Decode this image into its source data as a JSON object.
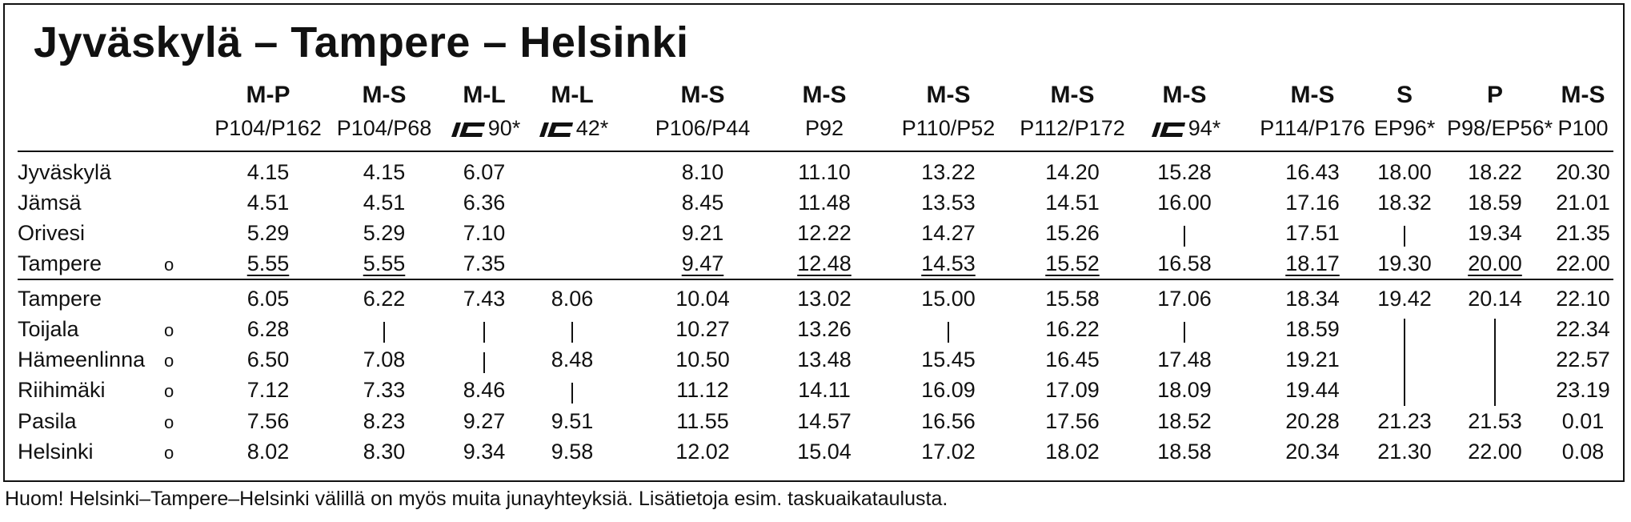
{
  "title": "Jyväskylä – Tampere – Helsinki",
  "columns": [
    {
      "type": "M-P",
      "train": "P104/P162"
    },
    {
      "type": "M-S",
      "train": "P104/P68"
    },
    {
      "type": "M-L",
      "train": "90*",
      "ic": true
    },
    {
      "type": "M-L",
      "train": "42*",
      "ic": true
    },
    {
      "type": "M-S",
      "train": "P106/P44"
    },
    {
      "type": "M-S",
      "train": "P92"
    },
    {
      "type": "M-S",
      "train": "P110/P52"
    },
    {
      "type": "M-S",
      "train": "P112/P172"
    },
    {
      "type": "M-S",
      "train": "94*",
      "ic": true
    },
    {
      "type": "M-S",
      "train": "P114/P176"
    },
    {
      "type": "S",
      "train": "EP96*"
    },
    {
      "type": "P",
      "train": "P98/EP56*"
    },
    {
      "type": "M-S",
      "train": "P100"
    }
  ],
  "sections": [
    {
      "rows": [
        {
          "station": "Jyväskylä",
          "circle": "",
          "times": [
            "4.15",
            "4.15",
            "6.07",
            "",
            "8.10",
            "11.10",
            "13.22",
            "14.20",
            "15.28",
            "16.43",
            "18.00",
            "18.22",
            "20.30"
          ]
        },
        {
          "station": "Jämsä",
          "circle": "",
          "times": [
            "4.51",
            "4.51",
            "6.36",
            "",
            "8.45",
            "11.48",
            "13.53",
            "14.51",
            "16.00",
            "17.16",
            "18.32",
            "18.59",
            "21.01"
          ]
        },
        {
          "station": "Orivesi",
          "circle": "",
          "times": [
            "5.29",
            "5.29",
            "7.10",
            "",
            "9.21",
            "12.22",
            "14.27",
            "15.26",
            "|",
            "17.51",
            "|",
            "19.34",
            "21.35"
          ]
        },
        {
          "station": "Tampere",
          "circle": "o",
          "times": [
            "5.55",
            "5.55",
            "7.35",
            "",
            "9.47",
            "12.48",
            "14.53",
            "15.52",
            "16.58",
            "18.17",
            "19.30",
            "20.00",
            "22.00"
          ],
          "underline": [
            0,
            1,
            4,
            5,
            6,
            7,
            9,
            11
          ]
        }
      ]
    },
    {
      "rows": [
        {
          "station": "Tampere",
          "circle": "",
          "times": [
            "6.05",
            "6.22",
            "7.43",
            "8.06",
            "10.04",
            "13.02",
            "15.00",
            "15.58",
            "17.06",
            "18.34",
            "19.42",
            "20.14",
            "22.10"
          ]
        },
        {
          "station": "Toijala",
          "circle": "o",
          "times": [
            "6.28",
            "|",
            "|",
            "|",
            "10.27",
            "13.26",
            "|",
            "16.22",
            "|",
            "18.59",
            "",
            "",
            "22.34"
          ]
        },
        {
          "station": "Hämeenlinna",
          "circle": "o",
          "times": [
            "6.50",
            "7.08",
            "|",
            "8.48",
            "10.50",
            "13.48",
            "15.45",
            "16.45",
            "17.48",
            "19.21",
            "",
            "",
            "22.57"
          ]
        },
        {
          "station": "Riihimäki",
          "circle": "o",
          "times": [
            "7.12",
            "7.33",
            "8.46",
            "|",
            "11.12",
            "14.11",
            "16.09",
            "17.09",
            "18.09",
            "19.44",
            "",
            "",
            "23.19"
          ]
        },
        {
          "station": "Pasila",
          "circle": "o",
          "times": [
            "7.56",
            "8.23",
            "9.27",
            "9.51",
            "11.55",
            "14.57",
            "16.56",
            "17.56",
            "18.52",
            "20.28",
            "21.23",
            "21.53",
            "0.01"
          ]
        },
        {
          "station": "Helsinki",
          "circle": "o",
          "times": [
            "8.02",
            "8.30",
            "9.34",
            "9.58",
            "12.02",
            "15.04",
            "17.02",
            "18.02",
            "18.58",
            "20.34",
            "21.30",
            "22.00",
            "0.08"
          ]
        }
      ]
    }
  ],
  "note": "Huom! Helsinki–Tampere–Helsinki välillä on myös muita junayhteyksiä. Lisätietoja esim. taskuaikataulusta."
}
